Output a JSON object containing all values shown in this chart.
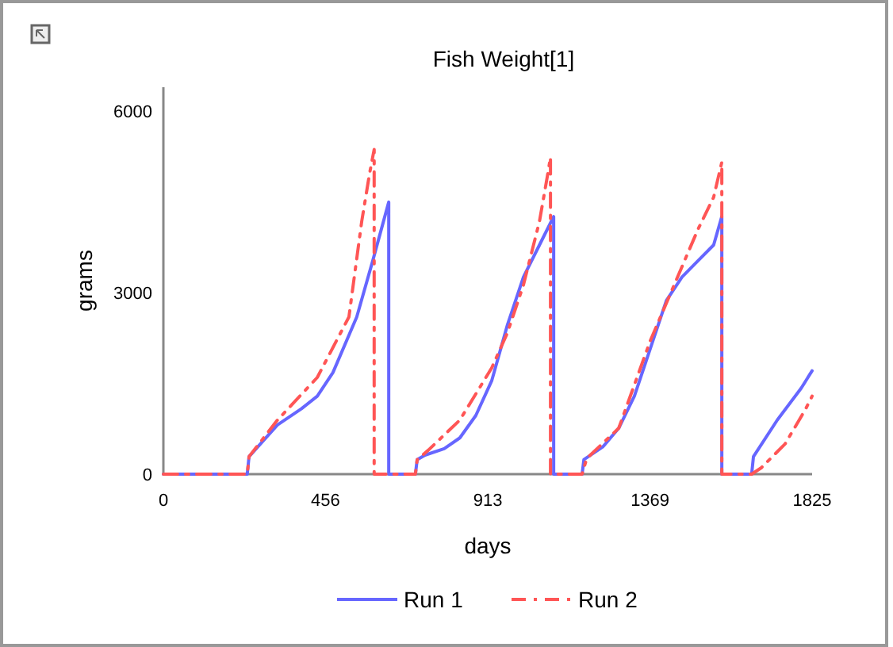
{
  "chart_data": {
    "type": "line",
    "title": "Fish Weight[1]",
    "xlabel": "days",
    "ylabel": "grams",
    "xlim": [
      0,
      1825
    ],
    "ylim": [
      0,
      6400
    ],
    "xticks": [
      0,
      456,
      913,
      1369,
      1825
    ],
    "yticks": [
      0,
      3000,
      6000
    ],
    "grid": false,
    "legend": "bottom",
    "marker": "none",
    "series": [
      {
        "name": "Run 1",
        "color": "#6666ff",
        "line_style": "solid",
        "x": [
          0,
          236,
          241,
          321,
          388,
          433,
          477,
          544,
          589,
          634,
          634,
          709,
          714,
          736,
          790,
          834,
          879,
          924,
          968,
          1013,
          1058,
          1098,
          1098,
          1178,
          1183,
          1236,
          1281,
          1325,
          1370,
          1415,
          1459,
          1504,
          1548,
          1571,
          1571,
          1655,
          1660,
          1727,
          1794,
          1825
        ],
        "values": [
          0,
          0,
          290,
          815,
          1080,
          1290,
          1680,
          2600,
          3530,
          4500,
          0,
          0,
          240,
          315,
          420,
          600,
          970,
          1550,
          2470,
          3260,
          3790,
          4260,
          0,
          0,
          240,
          450,
          760,
          1290,
          2080,
          2870,
          3260,
          3530,
          3790,
          4260,
          0,
          0,
          290,
          895,
          1420,
          1710
        ]
      },
      {
        "name": "Run 2",
        "color": "#ff5555",
        "line_style": "dashed",
        "x": [
          0,
          236,
          241,
          321,
          433,
          522,
          558,
          580,
          593,
          593,
          709,
          714,
          745,
          834,
          924,
          968,
          1013,
          1058,
          1080,
          1089,
          1089,
          1178,
          1191,
          1281,
          1370,
          1437,
          1504,
          1548,
          1571,
          1571,
          1655,
          1682,
          1749,
          1807,
          1825
        ],
        "values": [
          0,
          0,
          290,
          895,
          1600,
          2600,
          4180,
          4970,
          5370,
          0,
          0,
          240,
          395,
          895,
          1760,
          2340,
          3130,
          4180,
          4920,
          5240,
          0,
          0,
          260,
          760,
          2210,
          3130,
          4050,
          4580,
          5160,
          0,
          0,
          105,
          500,
          1080,
          1290
        ]
      }
    ]
  }
}
